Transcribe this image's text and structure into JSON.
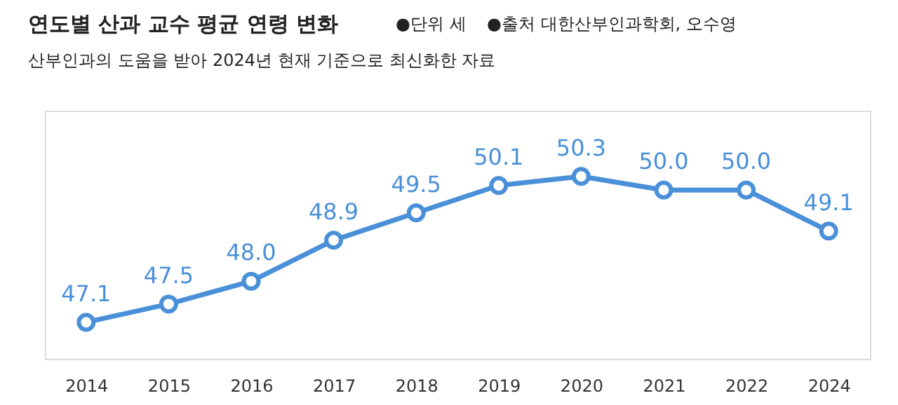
{
  "chart_data": {
    "type": "line",
    "title": "연도별 산과 교수 평균 연령 변화",
    "subtitle": "산부인과의 도움을 받아 2024년 현재 기준으로 최신화한 자료",
    "annotations": [
      "●단위 세",
      "●출처 대한산부인과학회, 오수영"
    ],
    "categories": [
      "2014",
      "2015",
      "2016",
      "2017",
      "2018",
      "2019",
      "2020",
      "2021",
      "2022",
      "2024"
    ],
    "series": [
      {
        "color": "#4a90d9",
        "values": [
          47.1,
          47.5,
          48.0,
          48.9,
          49.5,
          50.1,
          50.3,
          50.0,
          50.0,
          49.1
        ],
        "value_labels": [
          "47.1",
          "47.5",
          "48.0",
          "48.9",
          "49.5",
          "50.1",
          "50.3",
          "50.0",
          "50.0",
          "49.1"
        ]
      }
    ],
    "marker": "circle",
    "line_style": "solid",
    "grid": false
  }
}
